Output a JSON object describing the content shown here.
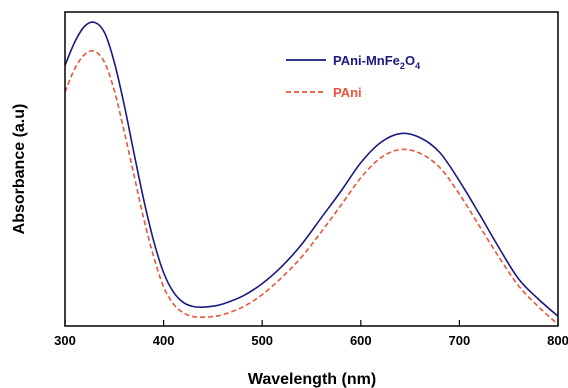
{
  "chart_data": {
    "type": "line",
    "xlabel": "Wavelength (nm)",
    "ylabel": "Absorbance (a.u)",
    "xlim": [
      300,
      800
    ],
    "ylim": [
      0,
      1
    ],
    "x_ticks": [
      "300",
      "400",
      "500",
      "600",
      "700",
      "800"
    ],
    "y_ticks_shown": false,
    "grid": false,
    "legend_position": "top-right",
    "series": [
      {
        "name_parts": {
          "pre": "PAni-MnFe",
          "sub1": "2",
          "mid": "O",
          "sub2": "4"
        },
        "color": "#1a1a80",
        "dash": "solid",
        "x": [
          300,
          310,
          320,
          330,
          340,
          350,
          360,
          370,
          380,
          390,
          400,
          410,
          420,
          430,
          440,
          450,
          460,
          480,
          500,
          520,
          540,
          560,
          580,
          600,
          620,
          640,
          660,
          680,
          700,
          720,
          740,
          760,
          780,
          800
        ],
        "y": [
          0.83,
          0.905,
          0.955,
          0.967,
          0.935,
          0.84,
          0.705,
          0.55,
          0.4,
          0.27,
          0.17,
          0.108,
          0.075,
          0.062,
          0.06,
          0.063,
          0.07,
          0.095,
          0.135,
          0.19,
          0.26,
          0.345,
          0.43,
          0.52,
          0.584,
          0.613,
          0.6,
          0.553,
          0.462,
          0.358,
          0.25,
          0.15,
          0.086,
          0.031
        ]
      },
      {
        "name": "PAni",
        "color": "#e8553a",
        "dash": "dashed",
        "x": [
          300,
          310,
          320,
          330,
          340,
          350,
          360,
          370,
          380,
          390,
          400,
          410,
          420,
          430,
          440,
          450,
          460,
          480,
          500,
          520,
          540,
          560,
          580,
          600,
          620,
          640,
          660,
          680,
          700,
          720,
          740,
          760,
          780,
          800
        ],
        "y": [
          0.745,
          0.82,
          0.865,
          0.875,
          0.84,
          0.75,
          0.62,
          0.48,
          0.34,
          0.22,
          0.125,
          0.07,
          0.042,
          0.03,
          0.028,
          0.03,
          0.036,
          0.06,
          0.1,
          0.155,
          0.22,
          0.3,
          0.385,
          0.472,
          0.535,
          0.562,
          0.55,
          0.505,
          0.42,
          0.32,
          0.22,
          0.128,
          0.062,
          0.005
        ]
      }
    ]
  }
}
